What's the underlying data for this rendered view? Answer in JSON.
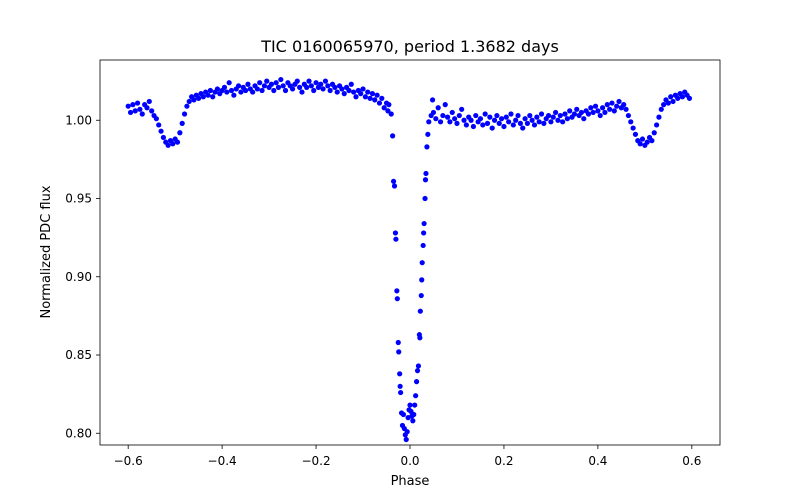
{
  "chart_data": {
    "type": "scatter",
    "title": "TIC 0160065970, period 1.3682 days",
    "xlabel": "Phase",
    "ylabel": "Normalized PDC flux",
    "xlim": [
      -0.66,
      0.66
    ],
    "ylim": [
      0.7925,
      1.0385
    ],
    "xticks": [
      -0.6,
      -0.4,
      -0.2,
      0.0,
      0.2,
      0.4,
      0.6
    ],
    "xtick_labels": [
      "−0.6",
      "−0.4",
      "−0.2",
      "0.0",
      "0.2",
      "0.4",
      "0.6"
    ],
    "yticks": [
      0.8,
      0.85,
      0.9,
      0.95,
      1.0
    ],
    "ytick_labels": [
      "0.80",
      "0.85",
      "0.90",
      "0.95",
      "1.00"
    ],
    "grid": false,
    "marker_color": "#0000ff",
    "series": [
      {
        "points": [
          [
            -0.6,
            1.009
          ],
          [
            -0.595,
            1.005
          ],
          [
            -0.59,
            1.01
          ],
          [
            -0.585,
            1.006
          ],
          [
            -0.58,
            1.011
          ],
          [
            -0.575,
            1.007
          ],
          [
            -0.57,
            1.004
          ],
          [
            -0.565,
            1.01
          ],
          [
            -0.56,
            1.008
          ],
          [
            -0.555,
            1.012
          ],
          [
            -0.55,
            1.006
          ],
          [
            -0.545,
            1.003
          ],
          [
            -0.54,
            1.001
          ],
          [
            -0.535,
            0.997
          ],
          [
            -0.53,
            0.993
          ],
          [
            -0.525,
            0.989
          ],
          [
            -0.52,
            0.986
          ],
          [
            -0.515,
            0.984
          ],
          [
            -0.51,
            0.987
          ],
          [
            -0.505,
            0.985
          ],
          [
            -0.5,
            0.988
          ],
          [
            -0.495,
            0.986
          ],
          [
            -0.49,
            0.992
          ],
          [
            -0.485,
            0.998
          ],
          [
            -0.48,
            1.004
          ],
          [
            -0.475,
            1.009
          ],
          [
            -0.47,
            1.012
          ],
          [
            -0.465,
            1.015
          ],
          [
            -0.46,
            1.013
          ],
          [
            -0.455,
            1.016
          ],
          [
            -0.45,
            1.014
          ],
          [
            -0.445,
            1.017
          ],
          [
            -0.44,
            1.015
          ],
          [
            -0.435,
            1.018
          ],
          [
            -0.43,
            1.016
          ],
          [
            -0.425,
            1.019
          ],
          [
            -0.42,
            1.015
          ],
          [
            -0.415,
            1.018
          ],
          [
            -0.41,
            1.02
          ],
          [
            -0.405,
            1.017
          ],
          [
            -0.4,
            1.019
          ],
          [
            -0.395,
            1.021
          ],
          [
            -0.39,
            1.018
          ],
          [
            -0.385,
            1.024
          ],
          [
            -0.38,
            1.019
          ],
          [
            -0.375,
            1.016
          ],
          [
            -0.37,
            1.02
          ],
          [
            -0.365,
            1.022
          ],
          [
            -0.36,
            1.018
          ],
          [
            -0.355,
            1.021
          ],
          [
            -0.35,
            1.019
          ],
          [
            -0.345,
            1.023
          ],
          [
            -0.34,
            1.02
          ],
          [
            -0.335,
            1.018
          ],
          [
            -0.33,
            1.022
          ],
          [
            -0.325,
            1.02
          ],
          [
            -0.32,
            1.024
          ],
          [
            -0.315,
            1.019
          ],
          [
            -0.31,
            1.022
          ],
          [
            -0.305,
            1.025
          ],
          [
            -0.3,
            1.021
          ],
          [
            -0.295,
            1.023
          ],
          [
            -0.29,
            1.019
          ],
          [
            -0.285,
            1.024
          ],
          [
            -0.28,
            1.021
          ],
          [
            -0.275,
            1.026
          ],
          [
            -0.27,
            1.022
          ],
          [
            -0.265,
            1.019
          ],
          [
            -0.26,
            1.024
          ],
          [
            -0.255,
            1.022
          ],
          [
            -0.25,
            1.02
          ],
          [
            -0.245,
            1.023
          ],
          [
            -0.24,
            1.025
          ],
          [
            -0.235,
            1.021
          ],
          [
            -0.23,
            1.018
          ],
          [
            -0.225,
            1.023
          ],
          [
            -0.22,
            1.021
          ],
          [
            -0.215,
            1.025
          ],
          [
            -0.21,
            1.022
          ],
          [
            -0.205,
            1.019
          ],
          [
            -0.2,
            1.024
          ],
          [
            -0.195,
            1.021
          ],
          [
            -0.19,
            1.023
          ],
          [
            -0.185,
            1.02
          ],
          [
            -0.18,
            1.025
          ],
          [
            -0.175,
            1.022
          ],
          [
            -0.17,
            1.019
          ],
          [
            -0.165,
            1.023
          ],
          [
            -0.16,
            1.021
          ],
          [
            -0.155,
            1.018
          ],
          [
            -0.15,
            1.022
          ],
          [
            -0.145,
            1.02
          ],
          [
            -0.14,
            1.017
          ],
          [
            -0.135,
            1.021
          ],
          [
            -0.13,
            1.019
          ],
          [
            -0.125,
            1.023
          ],
          [
            -0.12,
            1.018
          ],
          [
            -0.115,
            1.015
          ],
          [
            -0.11,
            1.019
          ],
          [
            -0.105,
            1.017
          ],
          [
            -0.1,
            1.02
          ],
          [
            -0.095,
            1.015
          ],
          [
            -0.09,
            1.018
          ],
          [
            -0.085,
            1.014
          ],
          [
            -0.08,
            1.017
          ],
          [
            -0.075,
            1.013
          ],
          [
            -0.07,
            1.016
          ],
          [
            -0.065,
            1.011
          ],
          [
            -0.06,
            1.014
          ],
          [
            -0.055,
            1.008
          ],
          [
            -0.05,
            1.011
          ],
          [
            -0.047,
            1.006
          ],
          [
            -0.045,
            1.01
          ],
          [
            -0.04,
            1.004
          ],
          [
            -0.037,
            0.99
          ],
          [
            -0.035,
            0.961
          ],
          [
            -0.033,
            0.958
          ],
          [
            -0.031,
            0.928
          ],
          [
            -0.03,
            0.924
          ],
          [
            -0.028,
            0.891
          ],
          [
            -0.027,
            0.886
          ],
          [
            -0.025,
            0.858
          ],
          [
            -0.024,
            0.852
          ],
          [
            -0.022,
            0.838
          ],
          [
            -0.021,
            0.83
          ],
          [
            -0.02,
            0.826
          ],
          [
            -0.018,
            0.813
          ],
          [
            -0.016,
            0.805
          ],
          [
            -0.014,
            0.812
          ],
          [
            -0.012,
            0.803
          ],
          [
            -0.01,
            0.799
          ],
          [
            -0.008,
            0.796
          ],
          [
            -0.006,
            0.801
          ],
          [
            -0.004,
            0.81
          ],
          [
            -0.002,
            0.815
          ],
          [
            0.0,
            0.818
          ],
          [
            0.002,
            0.814
          ],
          [
            0.004,
            0.811
          ],
          [
            0.006,
            0.808
          ],
          [
            0.008,
            0.812
          ],
          [
            0.01,
            0.818
          ],
          [
            0.012,
            0.824
          ],
          [
            0.014,
            0.833
          ],
          [
            0.016,
            0.84
          ],
          [
            0.018,
            0.843
          ],
          [
            0.02,
            0.863
          ],
          [
            0.021,
            0.861
          ],
          [
            0.022,
            0.878
          ],
          [
            0.024,
            0.888
          ],
          [
            0.025,
            0.898
          ],
          [
            0.026,
            0.909
          ],
          [
            0.028,
            0.92
          ],
          [
            0.029,
            0.928
          ],
          [
            0.03,
            0.934
          ],
          [
            0.032,
            0.95
          ],
          [
            0.033,
            0.962
          ],
          [
            0.034,
            0.966
          ],
          [
            0.036,
            0.983
          ],
          [
            0.038,
            0.991
          ],
          [
            0.04,
            0.999
          ],
          [
            0.045,
            1.003
          ],
          [
            0.048,
            1.013
          ],
          [
            0.05,
            1.005
          ],
          [
            0.055,
            1.001
          ],
          [
            0.06,
            1.008
          ],
          [
            0.065,
            0.999
          ],
          [
            0.07,
            1.003
          ],
          [
            0.075,
            1.01
          ],
          [
            0.08,
            1.002
          ],
          [
            0.085,
            0.999
          ],
          [
            0.09,
            1.005
          ],
          [
            0.095,
            1.001
          ],
          [
            0.1,
            0.998
          ],
          [
            0.105,
            1.003
          ],
          [
            0.11,
            1.007
          ],
          [
            0.115,
            1.0
          ],
          [
            0.12,
            0.997
          ],
          [
            0.125,
            1.002
          ],
          [
            0.13,
            1.0
          ],
          [
            0.135,
            0.996
          ],
          [
            0.14,
            1.003
          ],
          [
            0.145,
            0.999
          ],
          [
            0.15,
            1.001
          ],
          [
            0.155,
            0.997
          ],
          [
            0.16,
            1.004
          ],
          [
            0.165,
            0.998
          ],
          [
            0.17,
            1.002
          ],
          [
            0.175,
            0.995
          ],
          [
            0.18,
            1.0
          ],
          [
            0.185,
            1.003
          ],
          [
            0.19,
            0.998
          ],
          [
            0.195,
            1.001
          ],
          [
            0.2,
            0.996
          ],
          [
            0.205,
            1.002
          ],
          [
            0.21,
            0.999
          ],
          [
            0.215,
            1.004
          ],
          [
            0.22,
            0.997
          ],
          [
            0.225,
            1.0
          ],
          [
            0.23,
            1.003
          ],
          [
            0.235,
            0.998
          ],
          [
            0.24,
            0.995
          ],
          [
            0.245,
            1.001
          ],
          [
            0.25,
            0.998
          ],
          [
            0.255,
            1.003
          ],
          [
            0.26,
            1.0
          ],
          [
            0.265,
            0.997
          ],
          [
            0.27,
            1.002
          ],
          [
            0.275,
            0.999
          ],
          [
            0.28,
            1.004
          ],
          [
            0.285,
            0.998
          ],
          [
            0.29,
            1.001
          ],
          [
            0.295,
            1.003
          ],
          [
            0.3,
            0.999
          ],
          [
            0.305,
            1.002
          ],
          [
            0.31,
            1.005
          ],
          [
            0.315,
            1.0
          ],
          [
            0.32,
            1.003
          ],
          [
            0.325,
            0.999
          ],
          [
            0.33,
            1.004
          ],
          [
            0.335,
            1.001
          ],
          [
            0.34,
            1.006
          ],
          [
            0.345,
            1.002
          ],
          [
            0.35,
            1.004
          ],
          [
            0.355,
            1.007
          ],
          [
            0.36,
            1.003
          ],
          [
            0.365,
            1.005
          ],
          [
            0.37,
            1.001
          ],
          [
            0.375,
            1.006
          ],
          [
            0.38,
            1.004
          ],
          [
            0.385,
            1.008
          ],
          [
            0.39,
            1.005
          ],
          [
            0.395,
            1.009
          ],
          [
            0.4,
            1.006
          ],
          [
            0.405,
            1.003
          ],
          [
            0.41,
            1.008
          ],
          [
            0.415,
            1.005
          ],
          [
            0.42,
            1.01
          ],
          [
            0.425,
            1.007
          ],
          [
            0.43,
            1.011
          ],
          [
            0.435,
            1.006
          ],
          [
            0.44,
            1.009
          ],
          [
            0.445,
            1.012
          ],
          [
            0.45,
            1.008
          ],
          [
            0.455,
            1.01
          ],
          [
            0.46,
            1.007
          ],
          [
            0.465,
            1.003
          ],
          [
            0.47,
            0.999
          ],
          [
            0.475,
            0.995
          ],
          [
            0.48,
            0.991
          ],
          [
            0.485,
            0.987
          ],
          [
            0.49,
            0.985
          ],
          [
            0.495,
            0.988
          ],
          [
            0.5,
            0.984
          ],
          [
            0.505,
            0.986
          ],
          [
            0.51,
            0.989
          ],
          [
            0.515,
            0.987
          ],
          [
            0.52,
            0.992
          ],
          [
            0.525,
            0.997
          ],
          [
            0.53,
            1.002
          ],
          [
            0.535,
            1.007
          ],
          [
            0.54,
            1.01
          ],
          [
            0.545,
            1.013
          ],
          [
            0.55,
            1.011
          ],
          [
            0.555,
            1.015
          ],
          [
            0.56,
            1.012
          ],
          [
            0.565,
            1.016
          ],
          [
            0.57,
            1.014
          ],
          [
            0.575,
            1.017
          ],
          [
            0.58,
            1.015
          ],
          [
            0.585,
            1.018
          ],
          [
            0.59,
            1.016
          ],
          [
            0.595,
            1.014
          ]
        ]
      }
    ]
  }
}
